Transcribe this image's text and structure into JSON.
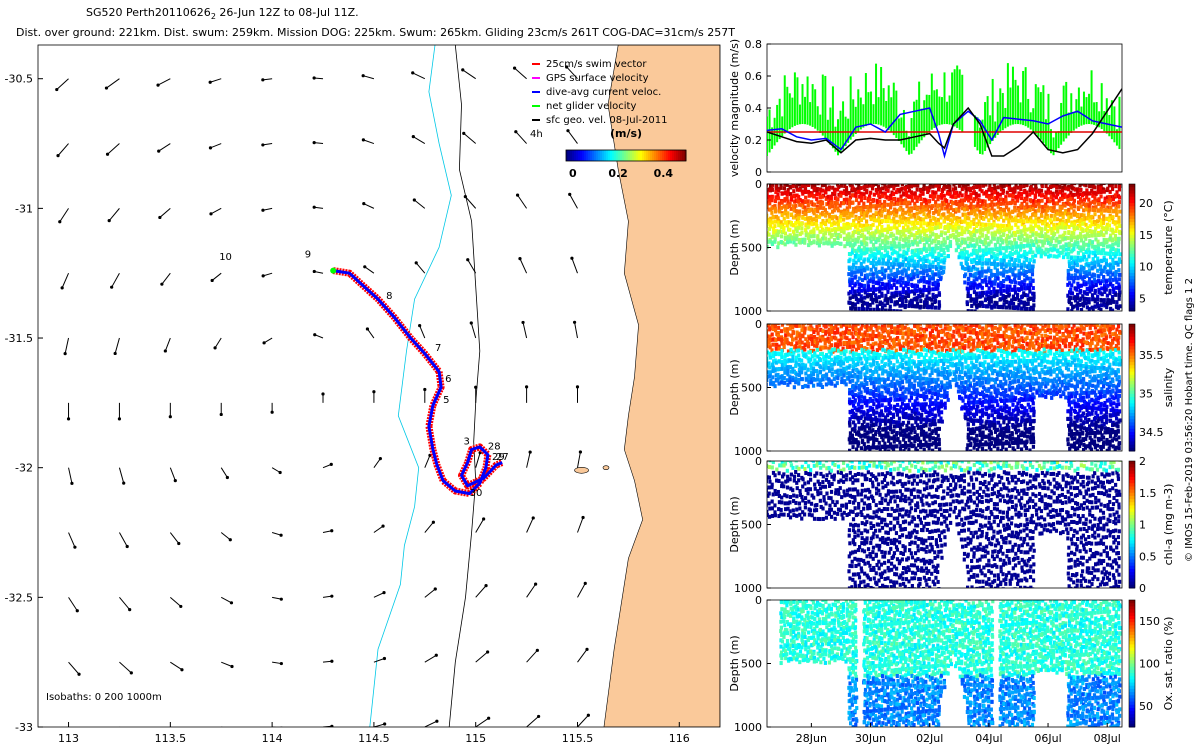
{
  "header": {
    "title_prefix": "SG520 Perth20110626",
    "title_sub": "2",
    "title_suffix": " 26-Jun 12Z to 08-Jul 11Z.",
    "stats": "Dist. over ground: 221km. Dist. swum: 259km. Mission DOG: 225km. Swum: 265km. Gliding 23cm/s 261T COG-DAC=31cm/s 257T"
  },
  "map": {
    "x_ticks": [
      "113",
      "113.5",
      "114",
      "114.5",
      "115",
      "115.5",
      "116"
    ],
    "x_tick_values": [
      113,
      113.5,
      114,
      114.5,
      115,
      115.5,
      116
    ],
    "x_range": [
      112.85,
      116.2
    ],
    "y_ticks": [
      "-30.5",
      "-31",
      "-31.5",
      "-32",
      "-32.5",
      "-33"
    ],
    "y_tick_values": [
      -30.5,
      -31,
      -31.5,
      -32,
      -32.5,
      -33
    ],
    "y_range": [
      -33,
      -30.37
    ],
    "legend": [
      {
        "label": "25cm/s swim vector",
        "color": "#ff0000"
      },
      {
        "label": "GPS surface velocity",
        "color": "#ff00ff"
      },
      {
        "label": "dive-avg current veloc.",
        "color": "#0000ff"
      },
      {
        "label": "net glider velocity",
        "color": "#00ff00"
      },
      {
        "label": "sfc geo. vel. 08-Jul-2011",
        "color": "#000000"
      }
    ],
    "interval_label": "4h",
    "colorbar_title": "(m/s)",
    "colorbar_ticks": [
      "0",
      "0.2",
      "0.4"
    ],
    "colorbar_tick_values": [
      0,
      0.2,
      0.4
    ],
    "colorbar_range": [
      -0.03,
      0.5
    ],
    "isobath_label": "Isobaths: 0   200   1000m",
    "track_labels": [
      {
        "text": "10",
        "lon": 113.74,
        "lat": -31.2
      },
      {
        "text": "9",
        "lon": 114.16,
        "lat": -31.19
      },
      {
        "text": "8",
        "lon": 114.56,
        "lat": -31.35
      },
      {
        "text": "7",
        "lon": 114.8,
        "lat": -31.55
      },
      {
        "text": "6",
        "lon": 114.85,
        "lat": -31.67
      },
      {
        "text": "5",
        "lon": 114.84,
        "lat": -31.75
      },
      {
        "text": "3",
        "lon": 114.94,
        "lat": -31.91
      },
      {
        "text": "28",
        "lon": 115.06,
        "lat": -31.93
      },
      {
        "text": "29",
        "lon": 115.08,
        "lat": -31.97
      },
      {
        "text": "27",
        "lon": 115.1,
        "lat": -31.97
      },
      {
        "text": "30",
        "lon": 114.97,
        "lat": -32.11
      }
    ],
    "track": [
      [
        114.3,
        -31.24
      ],
      [
        114.38,
        -31.25
      ],
      [
        114.45,
        -31.3
      ],
      [
        114.52,
        -31.35
      ],
      [
        114.6,
        -31.42
      ],
      [
        114.68,
        -31.5
      ],
      [
        114.75,
        -31.56
      ],
      [
        114.82,
        -31.63
      ],
      [
        114.83,
        -31.69
      ],
      [
        114.79,
        -31.76
      ],
      [
        114.77,
        -31.84
      ],
      [
        114.79,
        -31.93
      ],
      [
        114.81,
        -31.99
      ],
      [
        114.84,
        -32.05
      ],
      [
        114.9,
        -32.09
      ],
      [
        114.97,
        -32.1
      ],
      [
        115.02,
        -32.06
      ],
      [
        115.05,
        -32
      ],
      [
        115.06,
        -31.95
      ],
      [
        115.02,
        -31.92
      ],
      [
        114.98,
        -31.93
      ],
      [
        114.96,
        -31.98
      ],
      [
        114.93,
        -32.03
      ],
      [
        114.96,
        -32.07
      ],
      [
        115.04,
        -32.04
      ],
      [
        115.1,
        -31.99
      ],
      [
        115.13,
        -31.98
      ]
    ],
    "track_start_label": [
      114.3,
      -31.24
    ]
  },
  "velocity_panel": {
    "ylabel": "velocity magnitude (m/s)",
    "ylim": [
      0,
      0.8
    ],
    "y_ticks": [
      "0",
      "0.2",
      "0.4",
      "0.6",
      "0.8"
    ],
    "y_tick_values": [
      0,
      0.2,
      0.4,
      0.6,
      0.8
    ],
    "reference_line": 0.25,
    "blue_series": [
      [
        0,
        0.26
      ],
      [
        0.5,
        0.27
      ],
      [
        1.0,
        0.22
      ],
      [
        1.5,
        0.2
      ],
      [
        2.0,
        0.21
      ],
      [
        2.5,
        0.14
      ],
      [
        3.0,
        0.28
      ],
      [
        3.5,
        0.3
      ],
      [
        4.0,
        0.25
      ],
      [
        4.5,
        0.36
      ],
      [
        5.0,
        0.38
      ],
      [
        5.5,
        0.4
      ],
      [
        5.8,
        0.24
      ],
      [
        6.0,
        0.1
      ],
      [
        6.3,
        0.3
      ],
      [
        6.8,
        0.38
      ],
      [
        7.2,
        0.32
      ],
      [
        7.6,
        0.2
      ],
      [
        8.0,
        0.34
      ],
      [
        8.5,
        0.33
      ],
      [
        9.0,
        0.32
      ],
      [
        9.5,
        0.3
      ],
      [
        10.0,
        0.35
      ],
      [
        10.5,
        0.38
      ],
      [
        11.0,
        0.32
      ],
      [
        11.5,
        0.3
      ],
      [
        12.0,
        0.28
      ]
    ],
    "black_series": [
      [
        0,
        0.25
      ],
      [
        0.5,
        0.22
      ],
      [
        1.0,
        0.19
      ],
      [
        1.5,
        0.18
      ],
      [
        2.0,
        0.2
      ],
      [
        2.5,
        0.12
      ],
      [
        3.0,
        0.2
      ],
      [
        3.5,
        0.21
      ],
      [
        4.0,
        0.2
      ],
      [
        4.5,
        0.2
      ],
      [
        5.0,
        0.22
      ],
      [
        5.5,
        0.24
      ],
      [
        5.8,
        0.18
      ],
      [
        6.0,
        0.15
      ],
      [
        6.3,
        0.3
      ],
      [
        6.8,
        0.4
      ],
      [
        7.2,
        0.3
      ],
      [
        7.6,
        0.1
      ],
      [
        8.0,
        0.1
      ],
      [
        8.5,
        0.16
      ],
      [
        9.0,
        0.25
      ],
      [
        9.5,
        0.14
      ],
      [
        10.0,
        0.12
      ],
      [
        10.5,
        0.14
      ],
      [
        11.0,
        0.24
      ],
      [
        11.5,
        0.38
      ],
      [
        12.0,
        0.52
      ]
    ]
  },
  "sections": [
    {
      "ylabel": "Depth (m)",
      "cb_label": "temperature (°C)",
      "cb_ticks": [
        "20",
        "15",
        "10",
        "5"
      ],
      "cb_tick_values": [
        20,
        15,
        10,
        5
      ],
      "cb_range": [
        3,
        23
      ],
      "cmap": "jet"
    },
    {
      "ylabel": "Depth (m)",
      "cb_label": "salinity",
      "cb_ticks": [
        "35.5",
        "35",
        "34.5"
      ],
      "cb_tick_values": [
        35.5,
        35,
        34.5
      ],
      "cb_range": [
        34.25,
        35.9
      ],
      "cmap": "jet"
    },
    {
      "ylabel": "Depth (m)",
      "cb_label": "chl-a (mg m-3)",
      "cb_ticks": [
        "2",
        "1.5",
        "1",
        "0.5",
        "0"
      ],
      "cb_tick_values": [
        2,
        1.5,
        1,
        0.5,
        0
      ],
      "cb_range": [
        0,
        2
      ],
      "cmap": "jet"
    },
    {
      "ylabel": "Depth (m)",
      "cb_label": "Ox. sat. ratio (%)",
      "cb_ticks": [
        "150",
        "100",
        "50"
      ],
      "cb_tick_values": [
        150,
        100,
        50
      ],
      "cb_range": [
        25,
        175
      ],
      "cmap": "jet"
    }
  ],
  "depth_ticks": [
    "0",
    "500",
    "1000"
  ],
  "depth_tick_values": [
    0,
    500,
    1000
  ],
  "time_axis": {
    "labels": [
      "28Jun",
      "30Jun",
      "02Jul",
      "04Jul",
      "06Jul",
      "08Jul"
    ],
    "day_offsets": [
      1.5,
      3.5,
      5.5,
      7.5,
      9.5,
      11.5
    ],
    "range_days": [
      0,
      12
    ]
  },
  "side_note": "© IMOS 15-Feb-2019 03:56:20 Hobart time. QC flags 1  2",
  "colors": {
    "land": "#fac99a",
    "isobath_200": "#000000",
    "isobath_1000": "#00c8e6",
    "track_red": "#ff0000",
    "track_blue": "#0000ff",
    "track_green": "#00ff00",
    "ref_line": "#e00000"
  }
}
